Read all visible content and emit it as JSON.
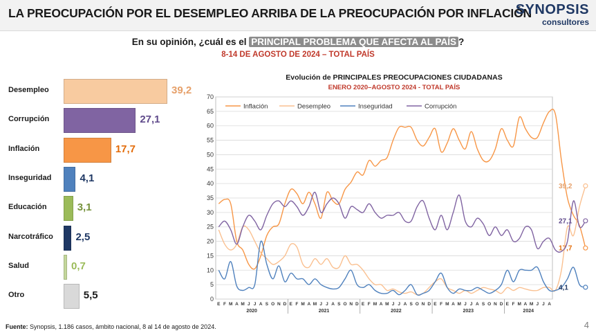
{
  "header": {
    "title": "LA PREOCUPACIÓN POR EL DESEMPLEO ARRIBA DE LA PREOCUPACIÓN POR INFLACIÓN",
    "logo_main": "SYNOPSIS",
    "logo_sub": "consultores"
  },
  "question": {
    "prefix": "En su opinión, ¿cuál es el ",
    "highlight": "PRINCIPAL PROBLEMA QUE AFECTA AL PAÍS",
    "suffix": "?",
    "subtitle": "8-14 DE AGOSTO DE 2024 – TOTAL PAÍS"
  },
  "footer": {
    "source_label": "Fuente:",
    "source_text": "Synopsis, 1.186 casos, ámbito nacional, 8 al 14 de agosto de 2024."
  },
  "page_number": "4",
  "chart_data": [
    {
      "type": "bar",
      "orientation": "horizontal",
      "categories": [
        "Desempleo",
        "Corrupción",
        "Inflación",
        "Inseguridad",
        "Educación",
        "Narcotráfico",
        "Salud",
        "Otro"
      ],
      "values": [
        39.2,
        27.1,
        17.7,
        4.1,
        3.1,
        2.5,
        0.7,
        5.5
      ],
      "value_labels": [
        "39,2",
        "27,1",
        "17,7",
        "4,1",
        "3,1",
        "2,5",
        "0,7",
        "5,5"
      ],
      "colors": [
        "#f8cba0",
        "#8064a2",
        "#f79646",
        "#4f81bd",
        "#9bbb59",
        "#1f3864",
        "#c4d79b",
        "#d9d9d9"
      ],
      "label_colors": [
        "#e6a06a",
        "#5f4a8b",
        "#e36c0a",
        "#1f3864",
        "#76923c",
        "#1f3864",
        "#9bbb59",
        "#1a1a1a"
      ]
    },
    {
      "type": "line",
      "title": "Evolución de PRINCIPALES PREOCUPACIONES CIUDADANAS",
      "subtitle": "ENERO 2020–AGOSTO 2024 - TOTAL PAÍS",
      "ylim": [
        0,
        70
      ],
      "yticks": [
        0,
        5,
        10,
        15,
        20,
        25,
        30,
        35,
        40,
        45,
        50,
        55,
        60,
        65,
        70
      ],
      "grid": true,
      "legend_position": "top",
      "month_letters": [
        "E",
        "F",
        "M",
        "A",
        "M",
        "J",
        "J",
        "A",
        "S",
        "O",
        "N",
        "D"
      ],
      "years": [
        "2020",
        "2021",
        "2022",
        "2023",
        "2024"
      ],
      "months_last_year": 8,
      "series": [
        {
          "name": "Inflación",
          "color": "#f79646",
          "end_label": "17,7",
          "values": [
            33,
            34.5,
            33,
            20,
            17,
            12,
            10.5,
            15,
            22,
            25,
            26,
            33,
            38,
            36.5,
            33,
            37,
            33,
            28,
            37,
            34,
            33,
            38,
            40.5,
            44,
            43,
            48,
            46,
            48,
            49,
            55,
            59.5,
            59.5,
            59.5,
            55,
            53,
            56,
            59,
            51,
            54,
            59,
            55,
            52,
            58,
            52,
            48,
            48,
            52,
            59,
            55,
            53,
            63,
            59,
            56,
            56,
            61,
            65,
            64,
            48,
            35,
            29,
            25.5,
            17.7
          ]
        },
        {
          "name": "Desempleo",
          "color": "#fac090",
          "end_label": "39,2",
          "values": [
            24,
            19,
            17,
            19,
            25,
            24,
            20,
            16,
            14,
            12,
            13,
            15,
            19,
            18,
            12,
            11,
            14,
            12,
            14,
            11,
            11,
            15,
            12,
            12,
            10,
            7,
            5,
            5,
            3,
            3.5,
            2.5,
            2,
            2.5,
            1.5,
            2,
            4,
            6,
            7,
            4,
            3,
            2,
            3,
            2,
            3,
            4,
            3.5,
            3,
            2,
            4,
            3,
            4,
            3.5,
            3,
            3,
            4,
            4,
            3,
            10,
            25,
            22,
            32,
            39.2
          ]
        },
        {
          "name": "Inseguridad",
          "color": "#4f81bd",
          "end_label": "4,1",
          "values": [
            10,
            7,
            13,
            4.5,
            3,
            4,
            5,
            20,
            12,
            7,
            11.5,
            6,
            9,
            7,
            7,
            5,
            7,
            5,
            4,
            3.5,
            4,
            7,
            10,
            5,
            4,
            5,
            3,
            2,
            2,
            3,
            1.5,
            3,
            5,
            1.5,
            2,
            3,
            6,
            9,
            4,
            2,
            3.5,
            3,
            3,
            4,
            3,
            2,
            3,
            5,
            10,
            6,
            10,
            10,
            10,
            11,
            6,
            3,
            3,
            4,
            7,
            11,
            5,
            4.1
          ]
        },
        {
          "name": "Corrupción",
          "color": "#8064a2",
          "end_label": "27,1",
          "values": [
            25,
            27,
            24,
            19,
            25,
            29,
            27,
            24,
            29,
            33,
            34,
            32,
            34,
            32,
            29,
            32,
            37,
            30,
            33,
            35,
            33,
            28,
            32,
            31,
            30,
            33,
            30,
            28,
            29,
            29,
            30,
            27,
            27,
            32,
            34,
            28,
            24,
            29,
            24,
            30,
            36,
            27,
            25,
            28,
            26,
            22,
            25,
            22,
            24,
            20,
            21,
            25,
            24,
            17.5,
            20,
            21,
            17,
            16.5,
            20,
            34,
            25,
            27.1
          ]
        }
      ]
    }
  ]
}
